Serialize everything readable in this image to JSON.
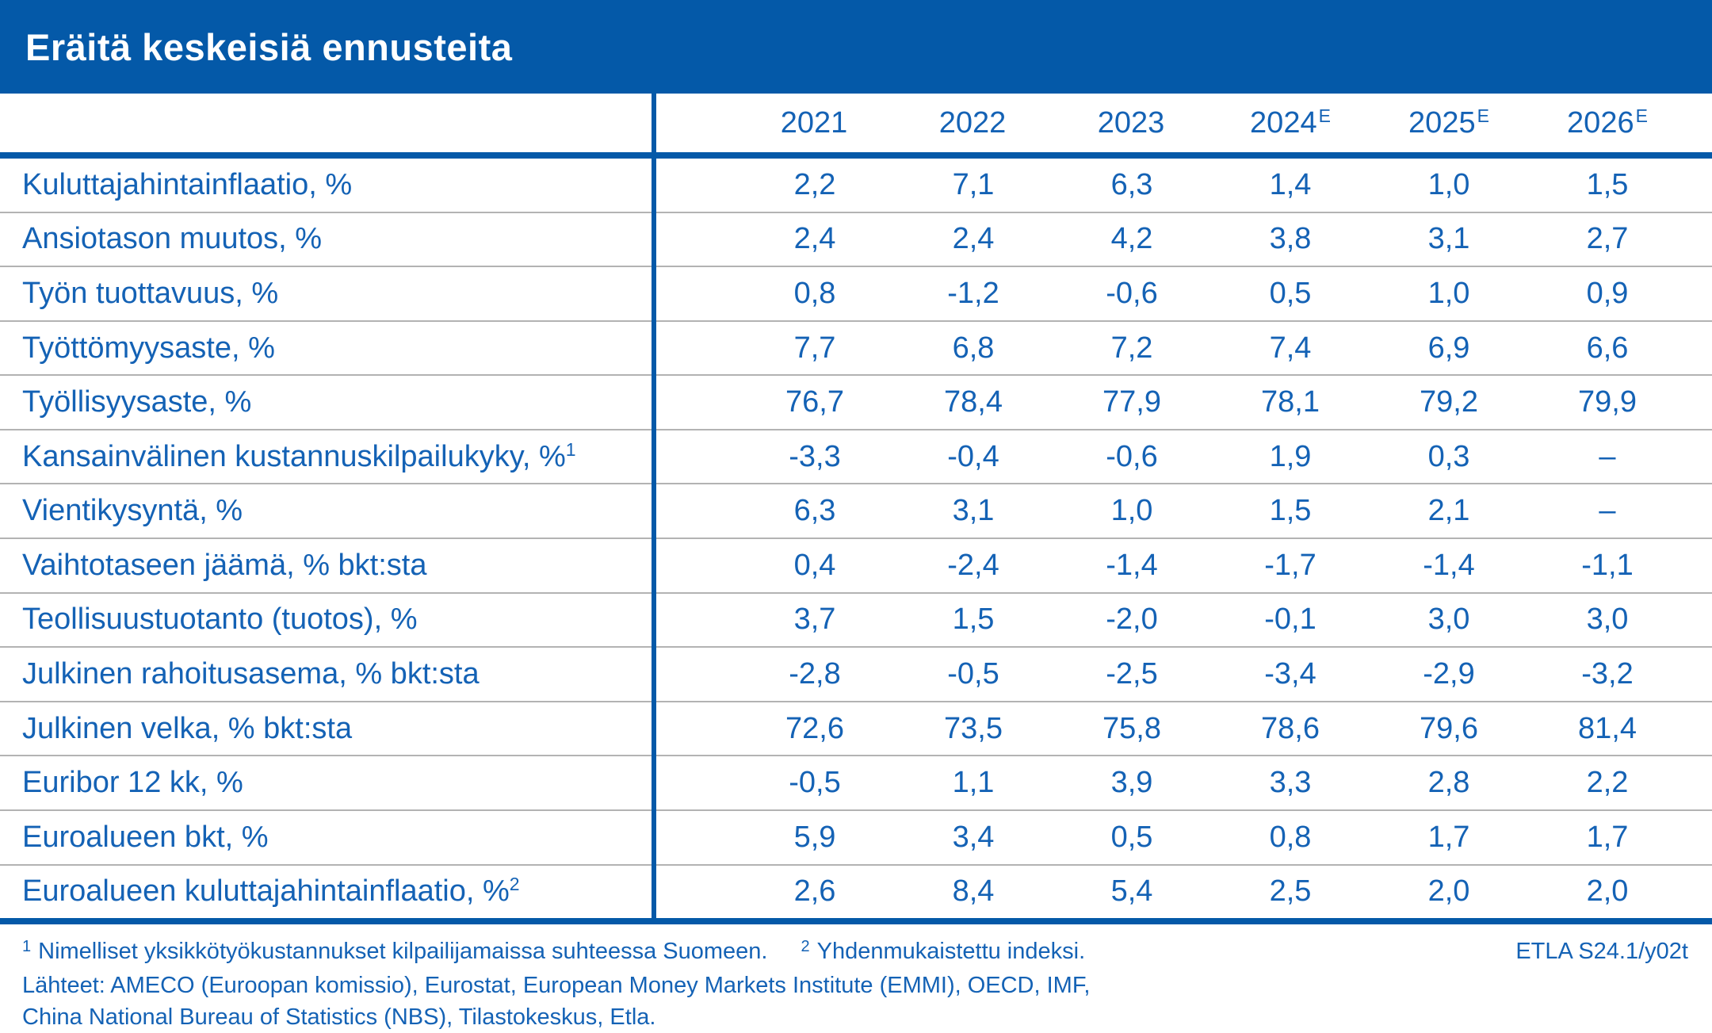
{
  "title": "Eräitä keskeisiä ennusteita",
  "colors": {
    "bar_blue": "#0459A8",
    "text_blue": "#1462B5",
    "separator_gray": "#b3b3b3",
    "title_text": "#ffffff"
  },
  "chart_data": {
    "type": "table",
    "title": "Eräitä keskeisiä ennusteita",
    "columns": [
      {
        "year": "2021",
        "sup": ""
      },
      {
        "year": "2022",
        "sup": ""
      },
      {
        "year": "2023",
        "sup": ""
      },
      {
        "year": "2024",
        "sup": "E"
      },
      {
        "year": "2025",
        "sup": "E"
      },
      {
        "year": "2026",
        "sup": "E"
      }
    ],
    "rows": [
      {
        "label": "Kuluttajahintainflaatio, %",
        "label_sup": "",
        "values": [
          "2,2",
          "7,1",
          "6,3",
          "1,4",
          "1,0",
          "1,5"
        ]
      },
      {
        "label": "Ansiotason muutos, %",
        "label_sup": "",
        "values": [
          "2,4",
          "2,4",
          "4,2",
          "3,8",
          "3,1",
          "2,7"
        ]
      },
      {
        "label": "Työn tuottavuus, %",
        "label_sup": "",
        "values": [
          "0,8",
          "-1,2",
          "-0,6",
          "0,5",
          "1,0",
          "0,9"
        ]
      },
      {
        "label": "Työttömyysaste, %",
        "label_sup": "",
        "values": [
          "7,7",
          "6,8",
          "7,2",
          "7,4",
          "6,9",
          "6,6"
        ]
      },
      {
        "label": "Työllisyysaste, %",
        "label_sup": "",
        "values": [
          "76,7",
          "78,4",
          "77,9",
          "78,1",
          "79,2",
          "79,9"
        ]
      },
      {
        "label": "Kansainvälinen kustannuskilpailukyky, %",
        "label_sup": "1",
        "values": [
          "-3,3",
          "-0,4",
          "-0,6",
          "1,9",
          "0,3",
          "–"
        ]
      },
      {
        "label": "Vientikysyntä, %",
        "label_sup": "",
        "values": [
          "6,3",
          "3,1",
          "1,0",
          "1,5",
          "2,1",
          "–"
        ]
      },
      {
        "label": "Vaihtotaseen jäämä, % bkt:sta",
        "label_sup": "",
        "values": [
          "0,4",
          "-2,4",
          "-1,4",
          "-1,7",
          "-1,4",
          "-1,1"
        ]
      },
      {
        "label": "Teollisuustuotanto (tuotos), %",
        "label_sup": "",
        "values": [
          "3,7",
          "1,5",
          "-2,0",
          "-0,1",
          "3,0",
          "3,0"
        ]
      },
      {
        "label": "Julkinen rahoitusasema, % bkt:sta",
        "label_sup": "",
        "values": [
          "-2,8",
          "-0,5",
          "-2,5",
          "-3,4",
          "-2,9",
          "-3,2"
        ]
      },
      {
        "label": "Julkinen velka, % bkt:sta",
        "label_sup": "",
        "values": [
          "72,6",
          "73,5",
          "75,8",
          "78,6",
          "79,6",
          "81,4"
        ]
      },
      {
        "label": "Euribor 12 kk, %",
        "label_sup": "",
        "values": [
          "-0,5",
          "1,1",
          "3,9",
          "3,3",
          "2,8",
          "2,2"
        ]
      },
      {
        "label": "Euroalueen bkt, %",
        "label_sup": "",
        "values": [
          "5,9",
          "3,4",
          "0,5",
          "0,8",
          "1,7",
          "1,7"
        ]
      },
      {
        "label": "Euroalueen kuluttajahintainflaatio, %",
        "label_sup": "2",
        "values": [
          "2,6",
          "8,4",
          "5,4",
          "2,5",
          "2,0",
          "2,0"
        ]
      }
    ]
  },
  "footnotes": {
    "note1_sup": "1",
    "note1": "Nimelliset yksikkötyökustannukset kilpailijamaissa suhteessa Suomeen.",
    "note2_sup": "2",
    "note2": "Yhdenmukaistettu indeksi.",
    "code": "ETLA S24.1/y02t",
    "sources_line1": "Lähteet: AMECO (Euroopan komissio), Eurostat, European Money Markets Institute (EMMI), OECD, IMF,",
    "sources_line2": "China National Bureau of Statistics (NBS), Tilastokeskus, Etla."
  }
}
